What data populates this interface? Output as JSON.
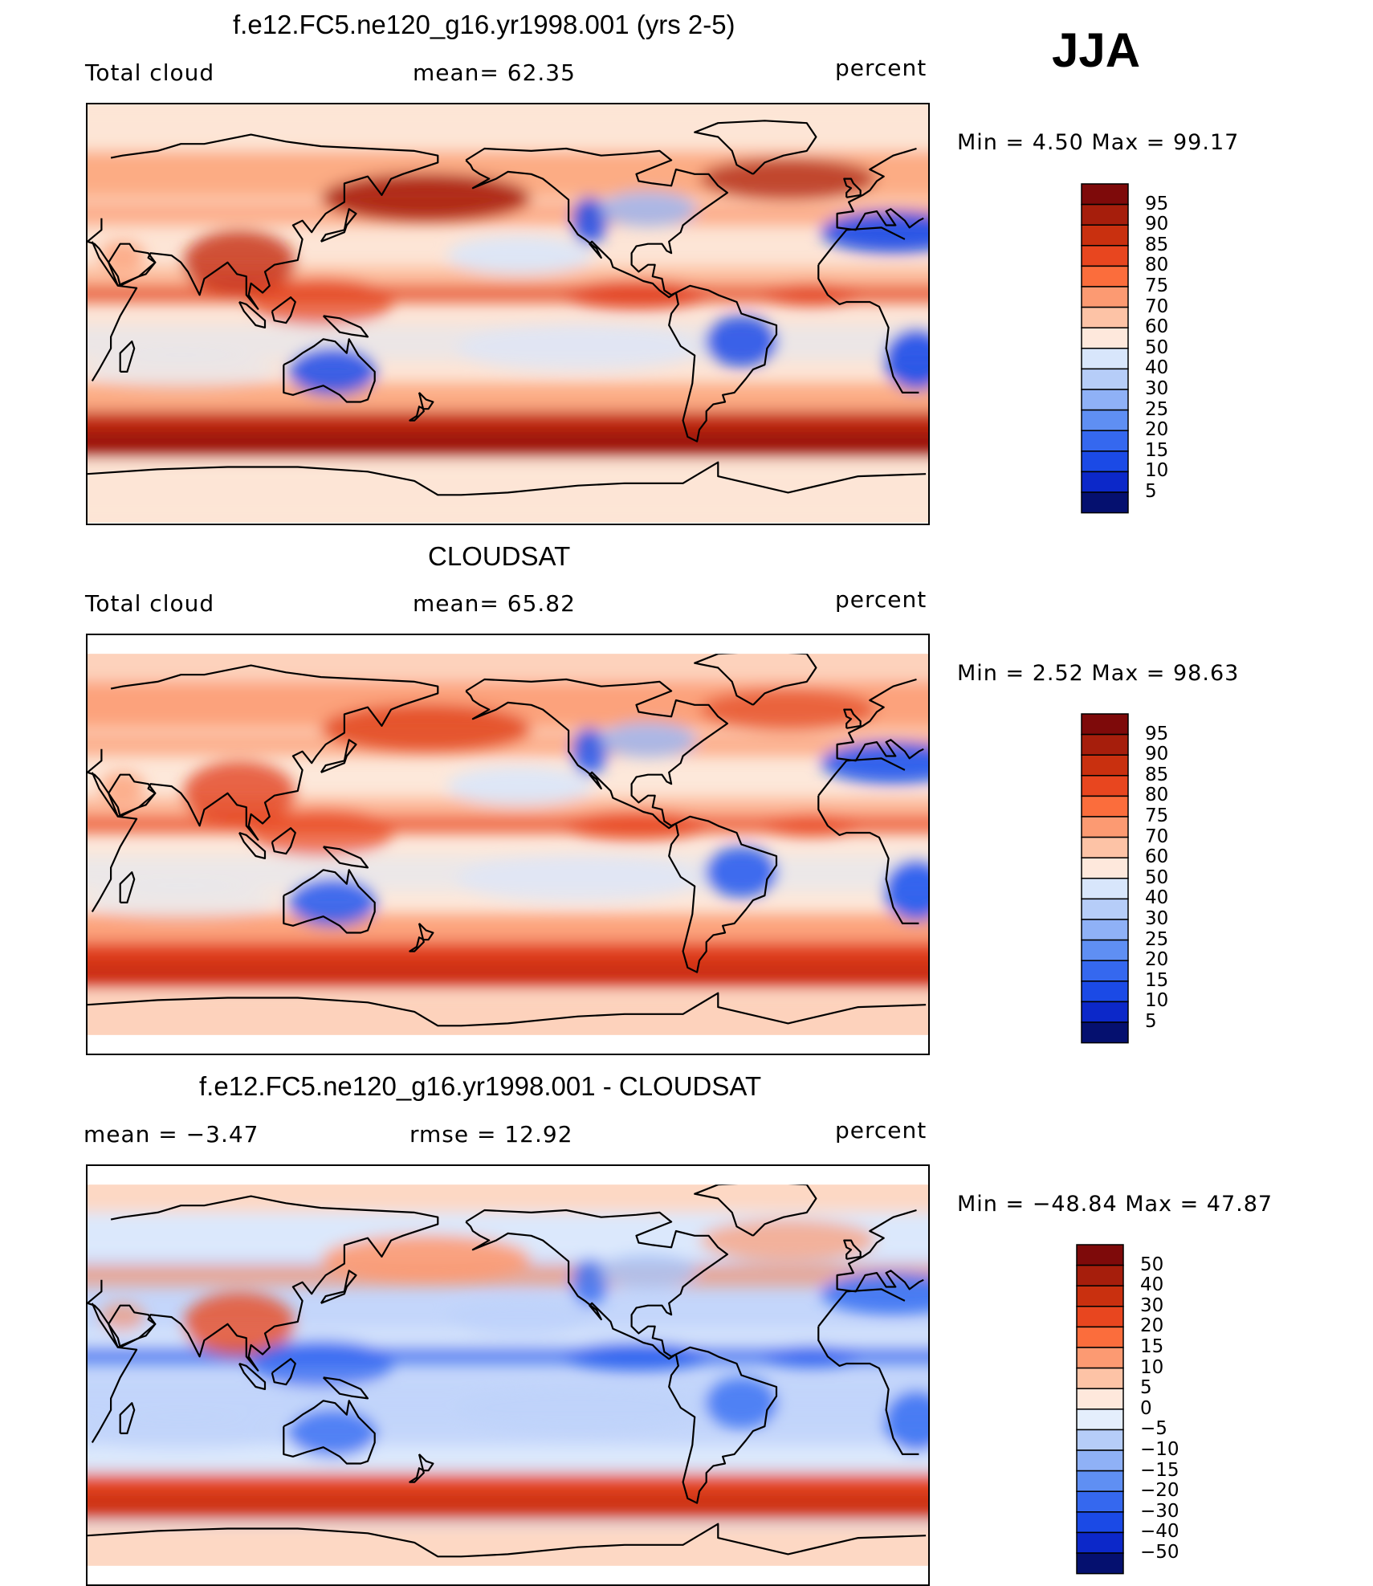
{
  "season": "JJA",
  "panels": [
    {
      "id": "model",
      "title": "f.e12.FC5.ne120_g16.yr1998.001 (yrs 2-5)",
      "left_label": "Total cloud",
      "center_label": "mean=   62.35",
      "right_label": "percent",
      "minmax": "Min  =     4.50  Max  =    99.17",
      "colors": {
        "polar": "#fde5d6",
        "storm": "#c42a10",
        "storm_core": "#8e0d07",
        "midlat": "#fcac84",
        "tropic": "#fde5d6",
        "itcz": "#e2411e",
        "land_dry": "#1a49e8",
        "land_mid": "#98b8f8",
        "ocean_low": "#d8e6fb",
        "npac": "#a81c0c",
        "warm": "#fc8a5c"
      }
    },
    {
      "id": "obs",
      "title": "CLOUDSAT",
      "left_label": "Total cloud",
      "center_label": "mean=   65.82",
      "right_label": "percent",
      "minmax": "Min  =     2.52  Max  =    98.63",
      "colors": {
        "polar": "#fdd2bc",
        "storm": "#e2411e",
        "storm_core": "#c42a10",
        "midlat": "#fca27c",
        "tropic": "#fde8da",
        "itcz": "#e84a22",
        "land_dry": "#2055ee",
        "land_mid": "#98b8f8",
        "ocean_low": "#d8e6fb",
        "npac": "#e24a22",
        "warm": "#fc8a5c"
      }
    },
    {
      "id": "diff",
      "title": "f.e12.FC5.ne120_g16.yr1998.001 - CLOUDSAT",
      "left_label": "mean  =    −3.47",
      "center_label": "rmse  =    12.92",
      "right_label": "percent",
      "minmax": "Min  = −48.84  Max  =    47.87",
      "colors": {
        "polar": "#fdd8c4",
        "storm": "#e84a22",
        "storm_core": "#c42a10",
        "midlat": "#dbe8fc",
        "tropic": "#c4d6fb",
        "itcz": "#2a60ef",
        "land_dry": "#3c72f2",
        "land_mid": "#a9c4f8",
        "ocean_low": "#bed2fa",
        "npac": "#fc9a72",
        "warm": "#fc8a5c"
      }
    }
  ],
  "colorbars": {
    "cloud": {
      "labels": [
        "95",
        "90",
        "85",
        "80",
        "75",
        "70",
        "60",
        "50",
        "40",
        "30",
        "25",
        "20",
        "15",
        "10",
        "5"
      ],
      "colors": [
        "#7e0a0a",
        "#a61e0c",
        "#c9300f",
        "#e8461f",
        "#fb6d3c",
        "#fc9a72",
        "#fdc3a6",
        "#fee8dc",
        "#d8e6fb",
        "#b6cdf8",
        "#8fb1f6",
        "#5f8ff3",
        "#3568ef",
        "#1b4ae6",
        "#0c28c9",
        "#05106f"
      ]
    },
    "diff": {
      "labels": [
        "50",
        "40",
        "30",
        "20",
        "15",
        "10",
        "5",
        "0",
        "−5",
        "−10",
        "−15",
        "−20",
        "−30",
        "−40",
        "−50"
      ],
      "colors": [
        "#7e0a0a",
        "#a61e0c",
        "#c9300f",
        "#e8461f",
        "#fb6d3c",
        "#fc9a72",
        "#fdc3a6",
        "#fee8dc",
        "#e4eefc",
        "#b6cdf8",
        "#8fb1f6",
        "#5f8ff3",
        "#3568ef",
        "#1b4ae6",
        "#0c28c9",
        "#05106f"
      ]
    }
  }
}
